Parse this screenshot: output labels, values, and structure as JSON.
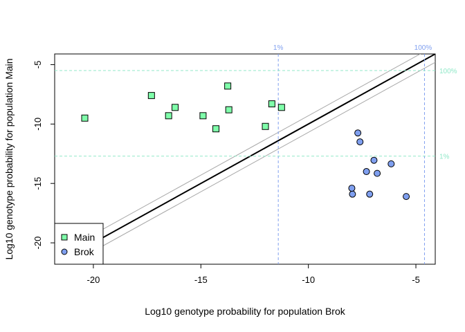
{
  "chart_data": {
    "type": "scatter",
    "title": "",
    "xlabel": "Log10 genotype probability for population Brok",
    "ylabel": "Log10 genotype probability for population Main",
    "xlim": [
      -21.8,
      -4.1
    ],
    "ylim": [
      -21.8,
      -4.1
    ],
    "x_ticks": [
      -20,
      -15,
      -10,
      -5
    ],
    "y_ticks": [
      -5,
      -10,
      -15,
      -20
    ],
    "x_tick_labels": [
      "-20",
      "-15",
      "-10",
      "-5"
    ],
    "y_tick_labels": [
      "-5",
      "-10",
      "-15",
      "-20"
    ],
    "grid": false,
    "legend_position": "bottom-left",
    "series": [
      {
        "name": "Main",
        "marker": "square",
        "color": "#7FFFAA",
        "points": [
          {
            "x": -20.4,
            "y": -9.5
          },
          {
            "x": -17.3,
            "y": -7.6
          },
          {
            "x": -16.5,
            "y": -9.3
          },
          {
            "x": -16.2,
            "y": -8.6
          },
          {
            "x": -14.9,
            "y": -9.3
          },
          {
            "x": -14.3,
            "y": -10.4
          },
          {
            "x": -13.75,
            "y": -6.8
          },
          {
            "x": -13.7,
            "y": -8.8
          },
          {
            "x": -12.0,
            "y": -10.2
          },
          {
            "x": -11.7,
            "y": -8.3
          },
          {
            "x": -11.25,
            "y": -8.6
          }
        ]
      },
      {
        "name": "Brok",
        "marker": "circle",
        "color": "#7F9FEF",
        "points": [
          {
            "x": -7.7,
            "y": -10.75
          },
          {
            "x": -7.6,
            "y": -11.5
          },
          {
            "x": -7.3,
            "y": -14.0
          },
          {
            "x": -7.15,
            "y": -15.9
          },
          {
            "x": -6.95,
            "y": -13.05
          },
          {
            "x": -6.8,
            "y": -14.15
          },
          {
            "x": -6.15,
            "y": -13.35
          },
          {
            "x": -5.45,
            "y": -16.1
          },
          {
            "x": -7.95,
            "y": -15.9
          },
          {
            "x": -7.98,
            "y": -15.4
          }
        ]
      }
    ],
    "reference_lines": {
      "diagonal_color": "#000000",
      "band_color": "#A8A8A8",
      "band_offset": 0.7,
      "vertical_color": "#7F9FEF",
      "horizontal_color": "#90E8C8",
      "vertical": [
        {
          "x": -11.4,
          "label": "1%"
        },
        {
          "x": -4.6,
          "label": "100%"
        }
      ],
      "horizontal": [
        {
          "y": -12.7,
          "label": "1%"
        },
        {
          "y": -5.5,
          "label": "100%"
        }
      ]
    }
  }
}
